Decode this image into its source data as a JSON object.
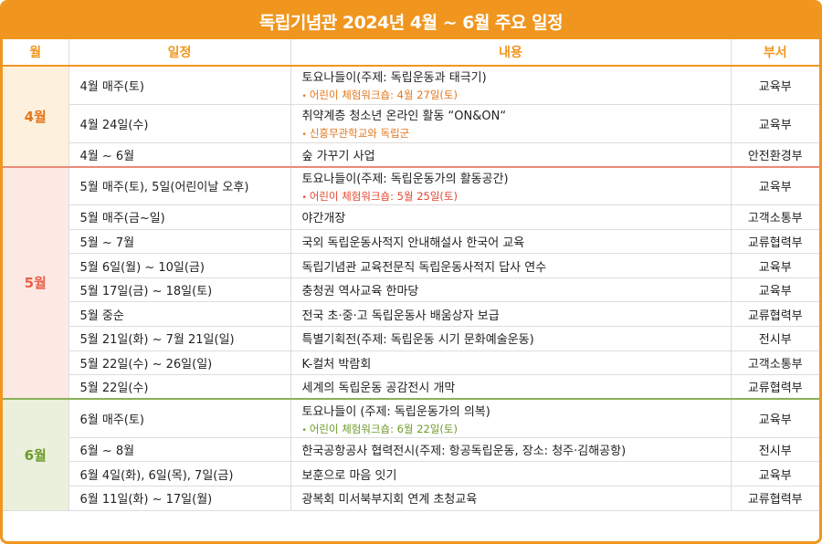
{
  "title": "독립기념관 2024년 4월 ~ 6월 주요 일정",
  "headers": {
    "month": "월",
    "date": "일정",
    "content": "내용",
    "dept": "부서"
  },
  "colors": {
    "accent": "#f0961e",
    "april": "#e2761a",
    "may": "#ea6048",
    "june": "#6d9a2a"
  },
  "months": [
    {
      "label": "4월",
      "rows": [
        {
          "date": "4월 매주(토)",
          "content": "토요나들이(주제: 독립운동과 태극기)",
          "sub": "어린이 체험워크숍: 4월 27일(토)",
          "dept": "교육부"
        },
        {
          "date": "4월 24일(수)",
          "content": "취약계층 청소년 온라인 활동 “ON&ON“",
          "sub": "신흥무관학교와 독립군",
          "dept": "교육부"
        },
        {
          "date": "4월 ~ 6월",
          "content": "숲 가꾸기 사업",
          "dept": "안전환경부"
        }
      ]
    },
    {
      "label": "5월",
      "rows": [
        {
          "date": "5월 매주(토), 5일(어린이날 오후)",
          "content": "토요나들이(주제: 독립운동가의 활동공간)",
          "sub": "어린이 체험워크숍: 5월 25일(토)",
          "dept": "교육부"
        },
        {
          "date": "5월 매주(금~일)",
          "content": "야간개장",
          "dept": "고객소통부"
        },
        {
          "date": "5월 ~ 7월",
          "content": "국외 독립운동사적지 안내해설사 한국어 교육",
          "dept": "교류협력부"
        },
        {
          "date": "5월 6일(월) ~ 10일(금)",
          "content": "독립기념관 교육전문직 독립운동사적지 답사 연수",
          "dept": "교육부"
        },
        {
          "date": "5월 17일(금) ~ 18일(토)",
          "content": "충청권 역사교육 한마당",
          "dept": "교육부"
        },
        {
          "date": "5월 중순",
          "content": "전국 초·중·고 독립운동사 배움상자 보급",
          "dept": "교류협력부"
        },
        {
          "date": "5월 21일(화) ~ 7월 21일(일)",
          "content": "특별기획전(주제: 독립운동 시기 문화예술운동)",
          "dept": "전시부"
        },
        {
          "date": "5월 22일(수) ~ 26일(일)",
          "content": "K-컬처 박람회",
          "dept": "고객소통부"
        },
        {
          "date": "5월 22일(수)",
          "content": "세계의 독립운동 공감전시 개막",
          "dept": "교류협력부"
        }
      ]
    },
    {
      "label": "6월",
      "rows": [
        {
          "date": "6월 매주(토)",
          "content": "토요나들이 (주제: 독립운동가의 의복)",
          "sub": "어린이 체험워크숍: 6월 22일(토)",
          "dept": "교육부"
        },
        {
          "date": "6월 ~ 8월",
          "content": "한국공항공사 협력전시(주제: 항공독립운동, 장소: 청주·김해공항)",
          "dept": "전시부"
        },
        {
          "date": "6월 4일(화), 6일(목), 7일(금)",
          "content": "보훈으로 마음 잇기",
          "dept": "교육부"
        },
        {
          "date": "6월 11일(화) ~ 17일(월)",
          "content": "광복회 미서북부지회 연계 초청교육",
          "dept": "교류협력부"
        }
      ]
    }
  ]
}
